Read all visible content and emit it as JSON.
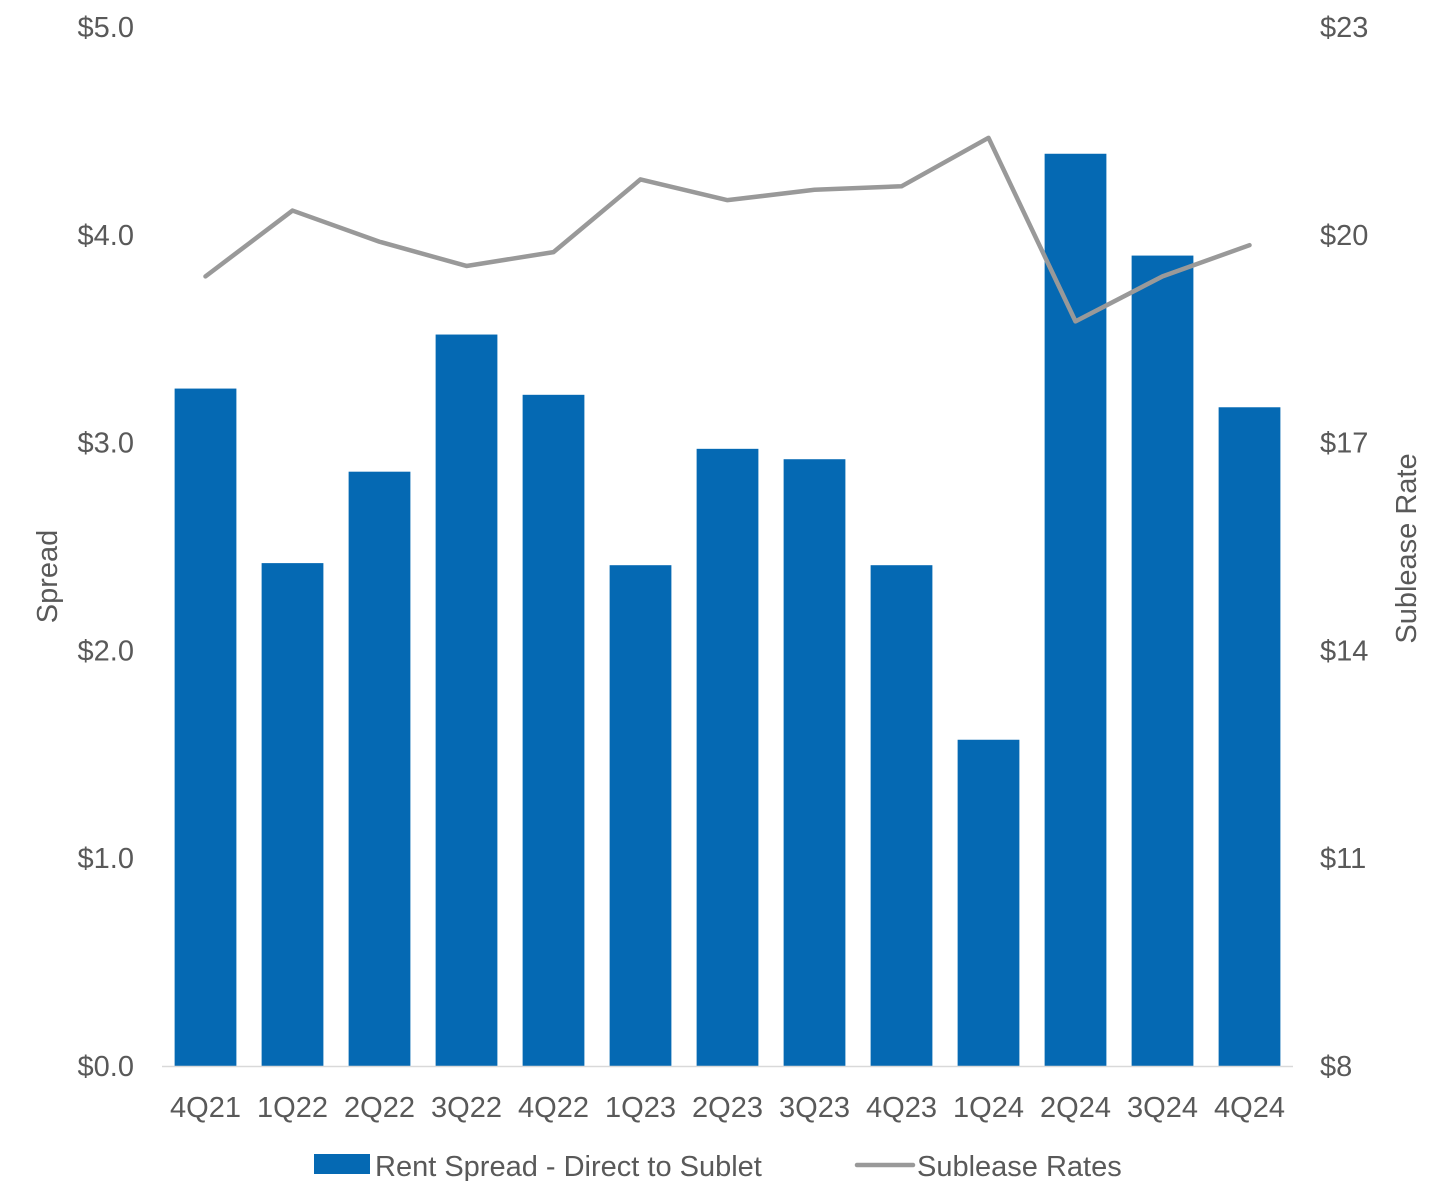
{
  "chart_data": {
    "type": "bar",
    "title": "",
    "categories": [
      "4Q21",
      "1Q22",
      "2Q22",
      "3Q22",
      "4Q22",
      "1Q23",
      "2Q23",
      "3Q23",
      "4Q23",
      "1Q24",
      "2Q24",
      "3Q24",
      "4Q24"
    ],
    "series": [
      {
        "name": "Rent Spread - Direct to Sublet",
        "type": "bar",
        "axis": "left",
        "color": "#0569B3",
        "values": [
          3.26,
          2.42,
          2.86,
          3.52,
          3.23,
          2.41,
          2.97,
          2.92,
          2.41,
          1.57,
          4.39,
          3.9,
          3.17
        ]
      },
      {
        "name": "Sublease Rates",
        "type": "line",
        "axis": "right",
        "color": "#999999",
        "values": [
          19.4,
          20.35,
          19.9,
          19.55,
          19.75,
          20.8,
          20.5,
          20.65,
          20.7,
          21.4,
          18.75,
          19.4,
          19.85
        ]
      }
    ],
    "y_left": {
      "label": "Spread",
      "ylim": [
        0,
        5
      ],
      "ticks": [
        0,
        1,
        2,
        3,
        4,
        5
      ],
      "tick_labels": [
        "$0.0",
        "$1.0",
        "$2.0",
        "$3.0",
        "$4.0",
        "$5.0"
      ]
    },
    "y_right": {
      "label": "Sublease Rate",
      "ylim": [
        8,
        23
      ],
      "ticks": [
        8,
        11,
        14,
        17,
        20,
        23
      ],
      "tick_labels": [
        "$8",
        "$11",
        "$14",
        "$17",
        "$20",
        "$23"
      ]
    },
    "xlabel": "",
    "grid": false,
    "legend": "bottom"
  }
}
